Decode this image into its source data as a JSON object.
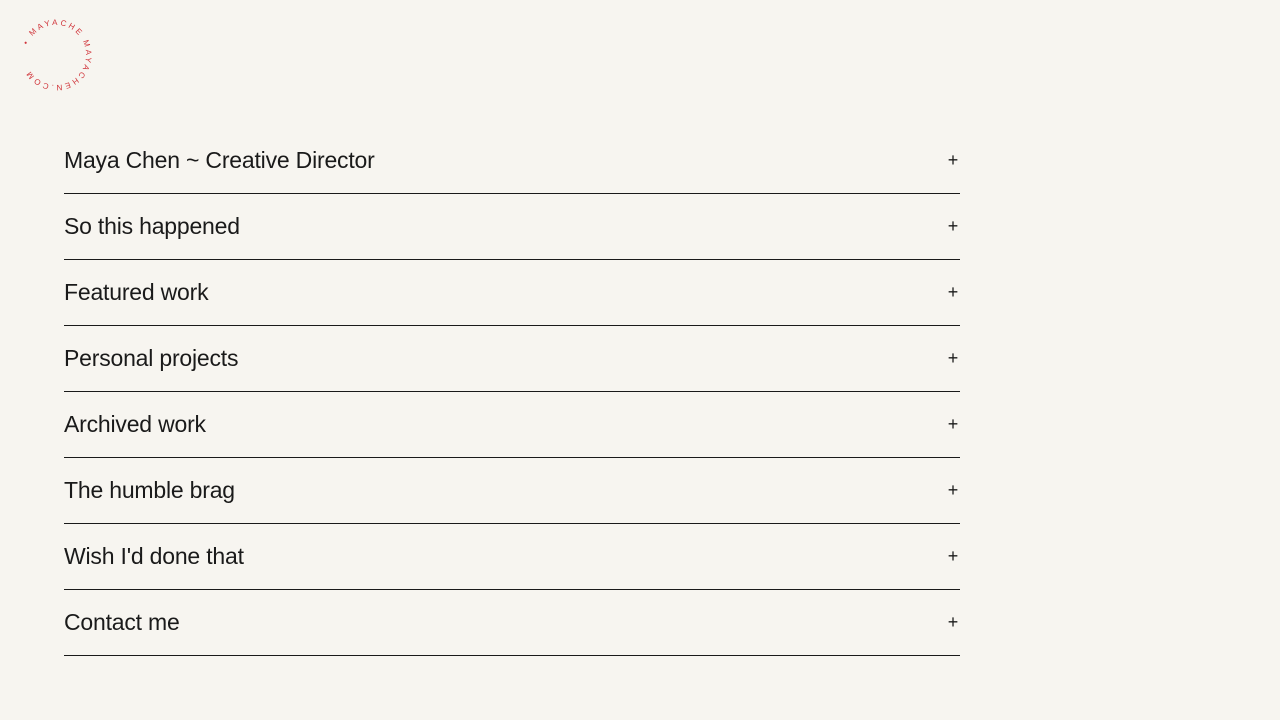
{
  "logo": {
    "text": "• MAYACHE MAYACHEN.COM",
    "color": "#d0343a"
  },
  "accordion": {
    "items": [
      {
        "label": "Maya Chen ~ Creative Director",
        "icon": "plus-icon"
      },
      {
        "label": "So this happened",
        "icon": "plus-icon"
      },
      {
        "label": "Featured work",
        "icon": "plus-icon"
      },
      {
        "label": "Personal projects",
        "icon": "plus-icon"
      },
      {
        "label": "Archived work",
        "icon": "plus-icon"
      },
      {
        "label": "The humble brag",
        "icon": "plus-icon"
      },
      {
        "label": "Wish I'd done that",
        "icon": "plus-icon"
      },
      {
        "label": "Contact me",
        "icon": "plus-icon"
      }
    ],
    "expand_symbol": "+"
  }
}
